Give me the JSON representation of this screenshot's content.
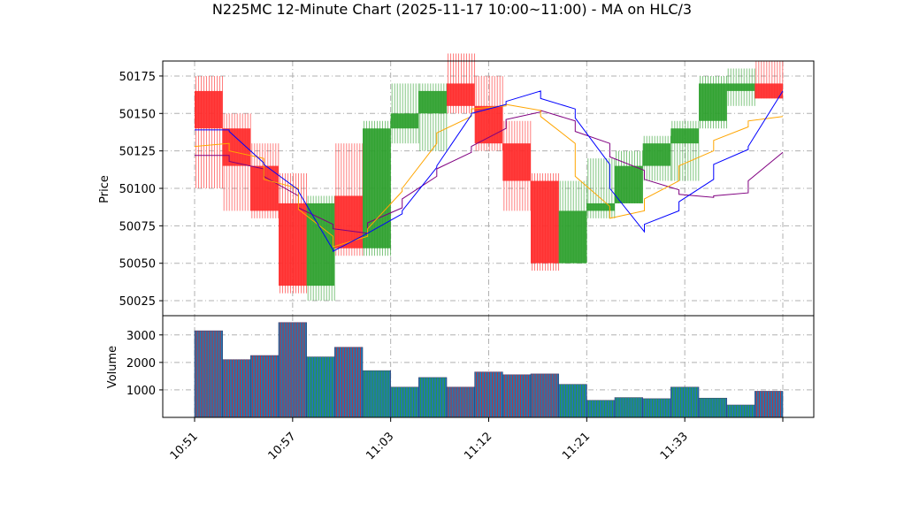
{
  "chart_data": {
    "type": "candlestick",
    "title": "N225MC 12-Minute Chart (2025-11-17 10:00~11:00) - MA on HLC/3",
    "price_panel": {
      "ylabel": "Price",
      "ylim": [
        50015,
        50185
      ],
      "yticks": [
        50025,
        50050,
        50075,
        50100,
        50125,
        50150,
        50175
      ],
      "grid": true
    },
    "volume_panel": {
      "ylabel": "Volume",
      "ylim": [
        0,
        3700
      ],
      "yticks": [
        1000,
        2000,
        3000
      ],
      "grid": true
    },
    "x_ticks": [
      "10:51",
      "10:57",
      "11:03",
      "11:12",
      "11:21",
      "11:33"
    ],
    "colors": {
      "up": "#2ca02c",
      "down": "#ff2a2a",
      "volume_fill": "#1f77b4",
      "ma_short": "#ffa500",
      "ma_mid": "#0000ff",
      "ma_long": "#800080"
    },
    "candles": [
      {
        "open": 50165,
        "high": 50175,
        "low": 50100,
        "close": 50140,
        "volume": 3150
      },
      {
        "open": 50140,
        "high": 50150,
        "low": 50085,
        "close": 50115,
        "volume": 2100
      },
      {
        "open": 50115,
        "high": 50130,
        "low": 50080,
        "close": 50085,
        "volume": 2250
      },
      {
        "open": 50090,
        "high": 50110,
        "low": 50030,
        "close": 50035,
        "volume": 3450
      },
      {
        "open": 50035,
        "high": 50095,
        "low": 50025,
        "close": 50090,
        "volume": 2200
      },
      {
        "open": 50095,
        "high": 50130,
        "low": 50055,
        "close": 50060,
        "volume": 2550
      },
      {
        "open": 50060,
        "high": 50145,
        "low": 50055,
        "close": 50140,
        "volume": 1700
      },
      {
        "open": 50140,
        "high": 50170,
        "low": 50130,
        "close": 50150,
        "volume": 1100
      },
      {
        "open": 50150,
        "high": 50170,
        "low": 50125,
        "close": 50165,
        "volume": 1450
      },
      {
        "open": 50170,
        "high": 50190,
        "low": 50150,
        "close": 50155,
        "volume": 1100
      },
      {
        "open": 50155,
        "high": 50175,
        "low": 50125,
        "close": 50130,
        "volume": 1650
      },
      {
        "open": 50130,
        "high": 50145,
        "low": 50085,
        "close": 50105,
        "volume": 1550
      },
      {
        "open": 50105,
        "high": 50110,
        "low": 50045,
        "close": 50050,
        "volume": 1580
      },
      {
        "open": 50050,
        "high": 50105,
        "low": 50050,
        "close": 50085,
        "volume": 1200
      },
      {
        "open": 50085,
        "high": 50120,
        "low": 50080,
        "close": 50090,
        "volume": 620
      },
      {
        "open": 50090,
        "high": 50125,
        "low": 50090,
        "close": 50115,
        "volume": 720
      },
      {
        "open": 50115,
        "high": 50135,
        "low": 50105,
        "close": 50130,
        "volume": 680
      },
      {
        "open": 50130,
        "high": 50145,
        "low": 50105,
        "close": 50140,
        "volume": 1100
      },
      {
        "open": 50145,
        "high": 50175,
        "low": 50140,
        "close": 50170,
        "volume": 700
      },
      {
        "open": 50165,
        "high": 50180,
        "low": 50155,
        "close": 50170,
        "volume": 450
      },
      {
        "open": 50170,
        "high": 50185,
        "low": 50160,
        "close": 50160,
        "volume": 950
      }
    ],
    "ma_short": [
      [
        50128,
        50130
      ],
      [
        50125,
        50120
      ],
      [
        50106,
        50100
      ],
      [
        50086,
        50068
      ],
      [
        50061,
        50068
      ],
      [
        50073,
        50098
      ],
      [
        50100,
        50130
      ],
      [
        50137,
        50148
      ],
      [
        50153,
        50155
      ],
      [
        50156,
        50152
      ],
      [
        50148,
        50130
      ],
      [
        50108,
        50088
      ],
      [
        50080,
        50085
      ],
      [
        50093,
        50105
      ],
      [
        50115,
        50125
      ],
      [
        50132,
        50141
      ],
      [
        50145,
        50148
      ]
    ],
    "ma_mid": [
      [
        50139,
        50139
      ],
      [
        50138,
        50117
      ],
      [
        50116,
        50099
      ],
      [
        50098,
        50059
      ],
      [
        50058,
        50070
      ],
      [
        50070,
        50083
      ],
      [
        50085,
        50114
      ],
      [
        50115,
        50149
      ],
      [
        50150,
        50156
      ],
      [
        50158,
        50165
      ],
      [
        50160,
        50153
      ],
      [
        50147,
        50116
      ],
      [
        50100,
        50071
      ],
      [
        50076,
        50085
      ],
      [
        50091,
        50106
      ],
      [
        50116,
        50126
      ],
      [
        50128,
        50165
      ]
    ],
    "ma_long": [
      [
        50122,
        50122
      ],
      [
        50118,
        50113
      ],
      [
        50108,
        50095
      ],
      [
        50087,
        50076
      ],
      [
        50073,
        50070
      ],
      [
        50077,
        50087
      ],
      [
        50093,
        50108
      ],
      [
        50113,
        50124
      ],
      [
        50128,
        50140
      ],
      [
        50146,
        50151
      ],
      [
        50152,
        50145
      ],
      [
        50138,
        50130
      ],
      [
        50121,
        50112
      ],
      [
        50106,
        50099
      ],
      [
        50096,
        50094
      ],
      [
        50095,
        50097
      ],
      [
        50105,
        50124
      ]
    ]
  }
}
